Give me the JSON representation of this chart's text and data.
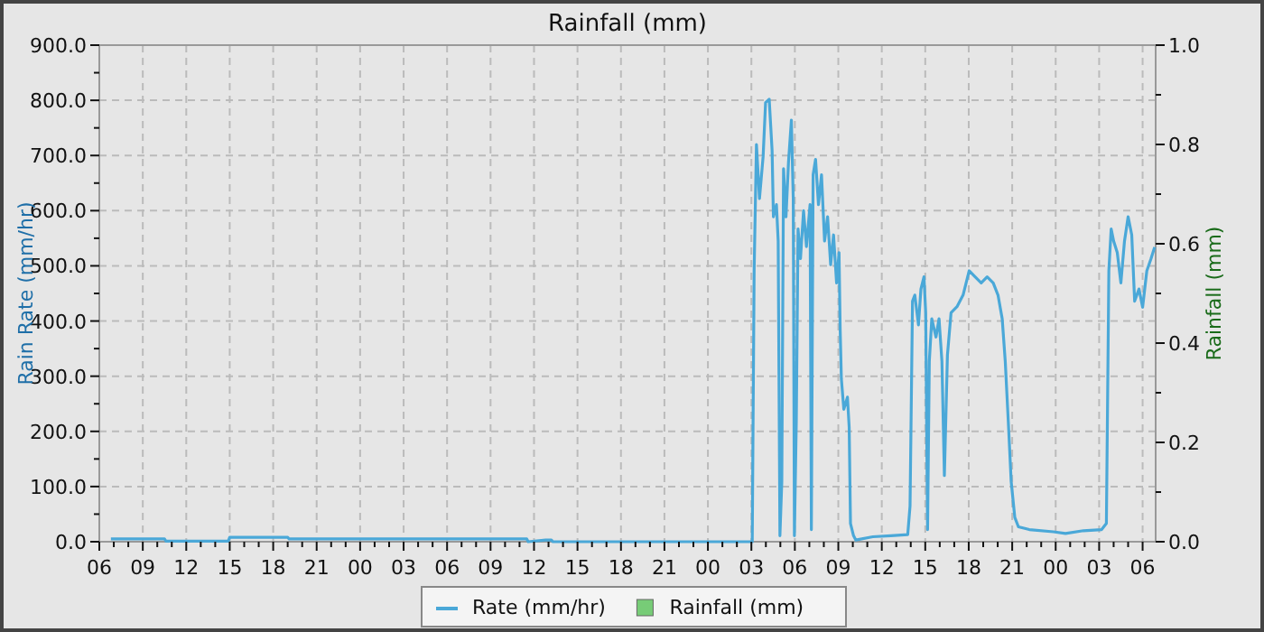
{
  "chart_data": {
    "type": "line",
    "title": "Rainfall (mm)",
    "ylabel": "Rain Rate (mm/hr)",
    "y2label": "Rainfall (mm)",
    "xlim": [
      6,
      78.9
    ],
    "ylim": [
      0,
      900
    ],
    "y2lim": [
      0,
      1
    ],
    "xticks": [
      {
        "value": 6,
        "label": "06"
      },
      {
        "value": 7,
        "label": null
      },
      {
        "value": 8,
        "label": null
      },
      {
        "value": 9,
        "label": "09"
      },
      {
        "value": 10,
        "label": null
      },
      {
        "value": 11,
        "label": null
      },
      {
        "value": 12,
        "label": "12"
      },
      {
        "value": 13,
        "label": null
      },
      {
        "value": 14,
        "label": null
      },
      {
        "value": 15,
        "label": "15"
      },
      {
        "value": 16,
        "label": null
      },
      {
        "value": 17,
        "label": null
      },
      {
        "value": 18,
        "label": "18"
      },
      {
        "value": 19,
        "label": null
      },
      {
        "value": 20,
        "label": null
      },
      {
        "value": 21,
        "label": "21"
      },
      {
        "value": 22,
        "label": null
      },
      {
        "value": 23,
        "label": null
      },
      {
        "value": 24,
        "label": "00"
      },
      {
        "value": 25,
        "label": null
      },
      {
        "value": 26,
        "label": null
      },
      {
        "value": 27,
        "label": "03"
      },
      {
        "value": 28,
        "label": null
      },
      {
        "value": 29,
        "label": null
      },
      {
        "value": 30,
        "label": "06"
      },
      {
        "value": 31,
        "label": null
      },
      {
        "value": 32,
        "label": null
      },
      {
        "value": 33,
        "label": "09"
      },
      {
        "value": 34,
        "label": null
      },
      {
        "value": 35,
        "label": null
      },
      {
        "value": 36,
        "label": "12"
      },
      {
        "value": 37,
        "label": null
      },
      {
        "value": 38,
        "label": null
      },
      {
        "value": 39,
        "label": "15"
      },
      {
        "value": 40,
        "label": null
      },
      {
        "value": 41,
        "label": null
      },
      {
        "value": 42,
        "label": "18"
      },
      {
        "value": 43,
        "label": null
      },
      {
        "value": 44,
        "label": null
      },
      {
        "value": 45,
        "label": "21"
      },
      {
        "value": 46,
        "label": null
      },
      {
        "value": 47,
        "label": null
      },
      {
        "value": 48,
        "label": "00"
      },
      {
        "value": 49,
        "label": null
      },
      {
        "value": 50,
        "label": null
      },
      {
        "value": 51,
        "label": "03"
      },
      {
        "value": 52,
        "label": null
      },
      {
        "value": 53,
        "label": null
      },
      {
        "value": 54,
        "label": "06"
      },
      {
        "value": 55,
        "label": null
      },
      {
        "value": 56,
        "label": null
      },
      {
        "value": 57,
        "label": "09"
      },
      {
        "value": 58,
        "label": null
      },
      {
        "value": 59,
        "label": null
      },
      {
        "value": 60,
        "label": "12"
      },
      {
        "value": 61,
        "label": null
      },
      {
        "value": 62,
        "label": null
      },
      {
        "value": 63,
        "label": "15"
      },
      {
        "value": 64,
        "label": null
      },
      {
        "value": 65,
        "label": null
      },
      {
        "value": 66,
        "label": "18"
      },
      {
        "value": 67,
        "label": null
      },
      {
        "value": 68,
        "label": null
      },
      {
        "value": 69,
        "label": "21"
      },
      {
        "value": 70,
        "label": null
      },
      {
        "value": 71,
        "label": null
      },
      {
        "value": 72,
        "label": "00"
      },
      {
        "value": 73,
        "label": null
      },
      {
        "value": 74,
        "label": null
      },
      {
        "value": 75,
        "label": "03"
      },
      {
        "value": 76,
        "label": null
      },
      {
        "value": 77,
        "label": null
      },
      {
        "value": 78,
        "label": "06"
      }
    ],
    "yticks": [
      {
        "value": 0,
        "label": "0.0"
      },
      {
        "value": 50,
        "label": null
      },
      {
        "value": 100,
        "label": "100.0"
      },
      {
        "value": 150,
        "label": null
      },
      {
        "value": 200,
        "label": "200.0"
      },
      {
        "value": 250,
        "label": null
      },
      {
        "value": 300,
        "label": "300.0"
      },
      {
        "value": 350,
        "label": null
      },
      {
        "value": 400,
        "label": "400.0"
      },
      {
        "value": 450,
        "label": null
      },
      {
        "value": 500,
        "label": "500.0"
      },
      {
        "value": 550,
        "label": null
      },
      {
        "value": 600,
        "label": "600.0"
      },
      {
        "value": 650,
        "label": null
      },
      {
        "value": 700,
        "label": "700.0"
      },
      {
        "value": 750,
        "label": null
      },
      {
        "value": 800,
        "label": "800.0"
      },
      {
        "value": 850,
        "label": null
      },
      {
        "value": 900,
        "label": "900.0"
      }
    ],
    "y2ticks": [
      {
        "value": 0,
        "label": "0.0"
      },
      {
        "value": 0.1,
        "label": null
      },
      {
        "value": 0.2,
        "label": "0.2"
      },
      {
        "value": 0.3,
        "label": null
      },
      {
        "value": 0.4,
        "label": "0.4"
      },
      {
        "value": 0.5,
        "label": null
      },
      {
        "value": 0.6,
        "label": "0.6"
      },
      {
        "value": 0.7,
        "label": null
      },
      {
        "value": 0.8,
        "label": "0.8"
      },
      {
        "value": 0.9,
        "label": null
      },
      {
        "value": 1,
        "label": "1.0"
      }
    ],
    "grid": true,
    "legend": "bottom",
    "series": [
      {
        "name": "Rate (mm/hr)",
        "color": "#4aa8d8",
        "x": [
          6.8,
          10.5,
          10.6,
          14.9,
          15,
          19,
          19.1,
          35.5,
          35.6,
          36.8,
          37.2,
          37.3,
          51.06,
          51.19,
          51.35,
          51.56,
          51.81,
          51.98,
          52.23,
          52.43,
          52.52,
          52.73,
          52.85,
          52.97,
          53.1,
          53.22,
          53.39,
          53.56,
          53.76,
          53.89,
          53.97,
          54.1,
          54.22,
          54.39,
          54.6,
          54.8,
          55.05,
          55.14,
          55.26,
          55.43,
          55.63,
          55.84,
          56.05,
          56.26,
          56.47,
          56.67,
          56.88,
          57.05,
          57.13,
          57.21,
          57.38,
          57.63,
          57.75,
          57.84,
          58.05,
          58.21,
          59.38,
          60.62,
          61.79,
          61.95,
          62.12,
          62.28,
          62.53,
          62.7,
          62.91,
          63.03,
          63.16,
          63.28,
          63.45,
          63.74,
          63.95,
          64.15,
          64.32,
          64.53,
          64.78,
          65.19,
          65.61,
          66.03,
          66.44,
          66.86,
          67.27,
          67.69,
          68.02,
          68.31,
          68.52,
          68.73,
          68.93,
          69.18,
          69.43,
          70.18,
          71.84,
          72.68,
          73.92,
          75.17,
          75.5,
          75.67,
          75.83,
          76,
          76.25,
          76.5,
          76.75,
          77,
          77.25,
          77.45,
          77.75,
          78,
          78.29,
          78.58,
          78.83
        ],
        "values": [
          5,
          5,
          1,
          1,
          8,
          8,
          5,
          5,
          0,
          3,
          3,
          0,
          0,
          491,
          720,
          622,
          698,
          796,
          802,
          709,
          589,
          611,
          545,
          11,
          109,
          676,
          589,
          687,
          764,
          622,
          11,
          218,
          567,
          513,
          600,
          535,
          611,
          22,
          665,
          693,
          611,
          665,
          545,
          589,
          502,
          556,
          469,
          524,
          382,
          295,
          240,
          262,
          207,
          33,
          11,
          3,
          9,
          11,
          13,
          65,
          436,
          447,
          393,
          458,
          480,
          415,
          22,
          327,
          404,
          371,
          404,
          327,
          120,
          338,
          415,
          426,
          447,
          491,
          480,
          469,
          480,
          469,
          447,
          404,
          327,
          218,
          109,
          44,
          27,
          22,
          18,
          15,
          20,
          22,
          33,
          491,
          567,
          545,
          524,
          469,
          545,
          589,
          556,
          436,
          458,
          425,
          491,
          513,
          534
        ]
      },
      {
        "name": "Rainfall (mm)",
        "color": "#77cc77",
        "type": "bar"
      }
    ]
  }
}
